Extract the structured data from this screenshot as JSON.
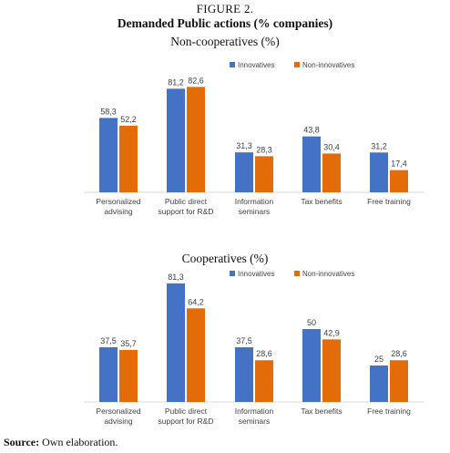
{
  "figure": {
    "label": "FIGURE 2.",
    "title": "Demanded Public actions (% companies)"
  },
  "source": {
    "label": "Source:",
    "text": " Own elaboration."
  },
  "colors": {
    "innovatives": "#4472c4",
    "non_innovatives": "#e36c09"
  },
  "chart_data": [
    {
      "type": "bar",
      "title": "Non-cooperatives (%)",
      "categories": [
        [
          "Personalized",
          "advising"
        ],
        [
          "Public direct",
          "support for R&D"
        ],
        [
          "Information",
          "seminars"
        ],
        [
          "Tax benefits"
        ],
        [
          "Free training"
        ]
      ],
      "series": [
        {
          "name": "Innovatives",
          "values": [
            58.3,
            81.2,
            31.3,
            43.8,
            31.2
          ],
          "labels": [
            "58,3",
            "81,2",
            "31,3",
            "43,8",
            "31,2"
          ]
        },
        {
          "name": "Non-innovatives",
          "values": [
            52.2,
            82.6,
            28.3,
            30.4,
            17.4
          ],
          "labels": [
            "52,2",
            "82,6",
            "28,3",
            "30,4",
            "17,4"
          ]
        }
      ],
      "ylim": [
        0,
        100
      ],
      "legend_position": "top-right",
      "grid": false
    },
    {
      "type": "bar",
      "title": "Cooperatives (%)",
      "categories": [
        [
          "Personalized",
          "advising"
        ],
        [
          "Public direct",
          "support for R&D"
        ],
        [
          "Information",
          "seminars"
        ],
        [
          "Tax benefits"
        ],
        [
          "Free training"
        ]
      ],
      "series": [
        {
          "name": "Innovatives",
          "values": [
            37.5,
            81.3,
            37.5,
            50,
            25
          ],
          "labels": [
            "37,5",
            "81,3",
            "37,5",
            "50",
            "25"
          ]
        },
        {
          "name": "Non-innovatives",
          "values": [
            35.7,
            64.2,
            28.6,
            42.9,
            28.6
          ],
          "labels": [
            "35,7",
            "64,2",
            "28,6",
            "42,9",
            "28,6"
          ]
        }
      ],
      "ylim": [
        0,
        100
      ],
      "legend_position": "top-right",
      "grid": false
    }
  ]
}
